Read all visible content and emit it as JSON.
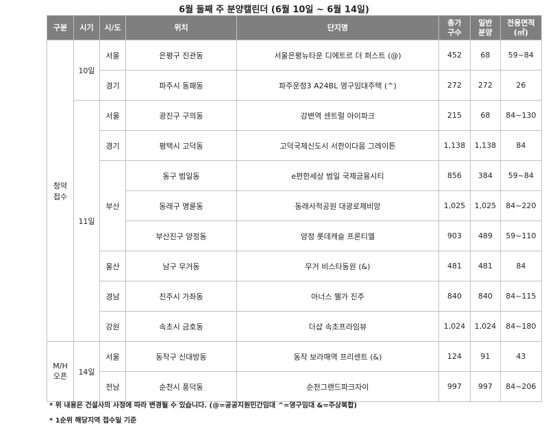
{
  "title": "6월 둘째 주 분양캘린더 (6월 10일 ~ 6월 14일)",
  "table": {
    "header": [
      "구분",
      "시기",
      "시/도",
      "위치",
      "단지명",
      "총가\n구수",
      "일반\n분양",
      "전용면적\n(㎡)"
    ],
    "categories": [
      {
        "label": "청약\n접수",
        "periods": [
          {
            "label": "10일",
            "regions": [
              {
                "name": "서울",
                "rows": [
                  {
                    "location": "은평구 진관동",
                    "complex": "서울은평뉴타운 디에트르 더 퍼스트 (@)",
                    "total": "452",
                    "general": "68",
                    "area": "59~84"
                  }
                ]
              },
              {
                "name": "경기",
                "rows": [
                  {
                    "location": "파주시 동패동",
                    "complex": "파주운정3 A24BL 영구임대주택 (^)",
                    "total": "272",
                    "general": "272",
                    "area": "26"
                  }
                ]
              }
            ]
          },
          {
            "label": "11일",
            "regions": [
              {
                "name": "서울",
                "rows": [
                  {
                    "location": "광진구 구의동",
                    "complex": "강변역 센트럴 아이파크",
                    "total": "215",
                    "general": "68",
                    "area": "84~130"
                  }
                ]
              },
              {
                "name": "경기",
                "rows": [
                  {
                    "location": "평택시 고덕동",
                    "complex": "고덕국제신도시 서한이다음 그레이튼",
                    "total": "1,138",
                    "general": "1,138",
                    "area": "84"
                  }
                ]
              },
              {
                "name": "부산",
                "rows": [
                  {
                    "location": "동구 범일동",
                    "complex": "e편한세상 범일 국제금융시티",
                    "total": "856",
                    "general": "384",
                    "area": "59~84"
                  },
                  {
                    "location": "동래구 명륜동",
                    "complex": "동래사적공원 대광로제비앙",
                    "total": "1,025",
                    "general": "1,025",
                    "area": "84~220"
                  },
                  {
                    "location": "부산진구 양정동",
                    "complex": "양정 롯데캐슬 프론티엘",
                    "total": "903",
                    "general": "489",
                    "area": "59~110"
                  }
                ]
              },
              {
                "name": "울산",
                "rows": [
                  {
                    "location": "남구 무거동",
                    "complex": "무거 비스타동원 (&)",
                    "total": "481",
                    "general": "481",
                    "area": "84"
                  }
                ]
              },
              {
                "name": "경남",
                "rows": [
                  {
                    "location": "진주시 가좌동",
                    "complex": "아너스 웰가 진주",
                    "total": "840",
                    "general": "840",
                    "area": "84~115"
                  }
                ]
              },
              {
                "name": "강원",
                "rows": [
                  {
                    "location": "속초시 금호동",
                    "complex": "더샵 속초프라임뷰",
                    "total": "1,024",
                    "general": "1,024",
                    "area": "84~180"
                  }
                ]
              }
            ]
          }
        ]
      },
      {
        "label": "M/H\n오픈",
        "periods": [
          {
            "label": "14일",
            "regions": [
              {
                "name": "서울",
                "rows": [
                  {
                    "location": "동작구 신대방동",
                    "complex": "동작 보라매역 프리센트 (&)",
                    "total": "124",
                    "general": "91",
                    "area": "43"
                  }
                ]
              },
              {
                "name": "전남",
                "rows": [
                  {
                    "location": "순천시 풍덕동",
                    "complex": "순천그랜드파크자이",
                    "total": "997",
                    "general": "997",
                    "area": "84~206"
                  }
                ]
              }
            ]
          }
        ]
      }
    ]
  },
  "notes": [
    "* 위 내용은 건설사의 사정에 따라 변경될 수 있습니다. (@=공공지원민간임대 ^=영구임대 &=주상복합)",
    "* 1순위 해당지역 접수일 기준"
  ]
}
